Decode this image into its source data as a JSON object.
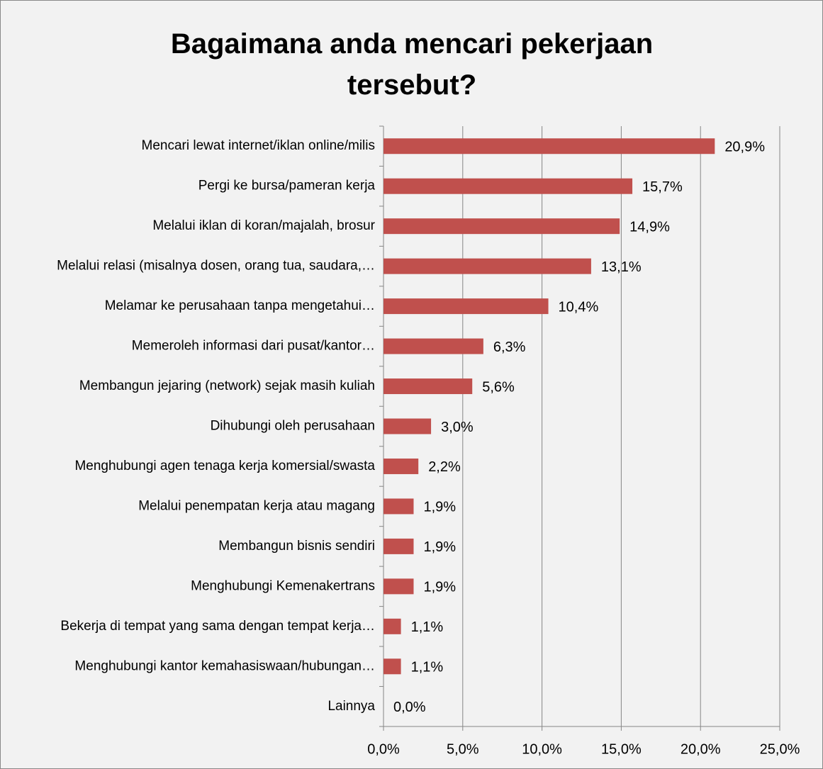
{
  "chart_data": {
    "type": "bar",
    "orientation": "horizontal",
    "title": "Bagaimana anda mencari pekerjaan tersebut?",
    "categories": [
      "Mencari lewat internet/iklan online/milis",
      "Pergi ke bursa/pameran kerja",
      "Melalui iklan di koran/majalah, brosur",
      "Melalui relasi (misalnya dosen, orang tua, saudara,…",
      "Melamar ke perusahaan tanpa mengetahui…",
      "Memeroleh informasi dari pusat/kantor…",
      "Membangun jejaring (network) sejak masih kuliah",
      "Dihubungi oleh perusahaan",
      "Menghubungi agen tenaga kerja komersial/swasta",
      "Melalui penempatan kerja atau magang",
      "Membangun bisnis sendiri",
      "Menghubungi Kemenakertrans",
      "Bekerja di tempat yang sama dengan tempat kerja…",
      "Menghubungi kantor kemahasiswaan/hubungan…",
      "Lainnya"
    ],
    "values": [
      20.9,
      15.7,
      14.9,
      13.1,
      10.4,
      6.3,
      5.6,
      3.0,
      2.2,
      1.9,
      1.9,
      1.9,
      1.1,
      1.1,
      0.0
    ],
    "value_labels": [
      "20,9%",
      "15,7%",
      "14,9%",
      "13,1%",
      "10,4%",
      "6,3%",
      "5,6%",
      "3,0%",
      "2,2%",
      "1,9%",
      "1,9%",
      "1,9%",
      "1,1%",
      "1,1%",
      "0,0%"
    ],
    "color": "#c0504d",
    "xlim": [
      0,
      25
    ],
    "xticks": [
      {
        "value": 0,
        "label": "0,0%"
      },
      {
        "value": 5,
        "label": "5,0%"
      },
      {
        "value": 10,
        "label": "10,0%"
      },
      {
        "value": 15,
        "label": "15,0%"
      },
      {
        "value": 20,
        "label": "20,0%"
      },
      {
        "value": 25,
        "label": "25,0%"
      }
    ],
    "grid": true
  }
}
